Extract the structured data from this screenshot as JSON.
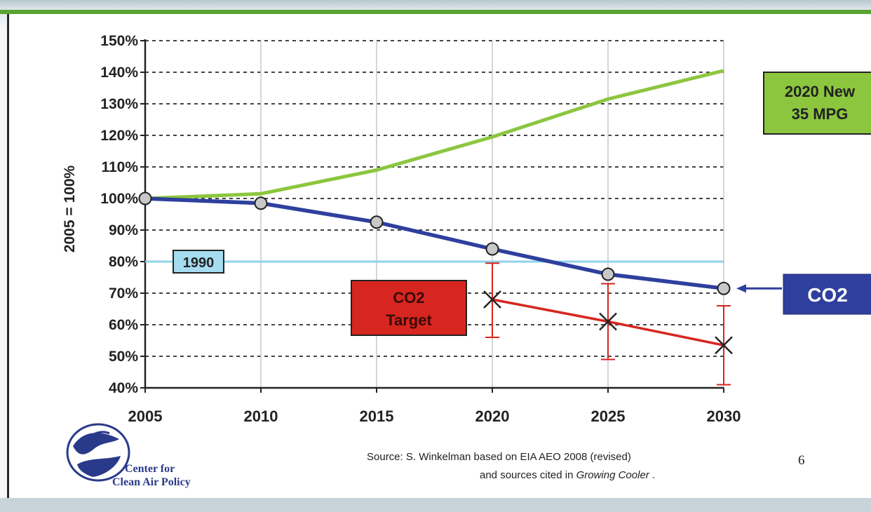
{
  "chart_data": {
    "type": "line",
    "ylabel": "2005 = 100%",
    "xlabel": "",
    "categories": [
      "2005",
      "2010",
      "2015",
      "2020",
      "2025",
      "2030"
    ],
    "x": [
      2005,
      2010,
      2015,
      2020,
      2025,
      2030
    ],
    "yticks": [
      "150%",
      "140%",
      "130%",
      "120%",
      "110%",
      "100%",
      "90%",
      "80%",
      "70%",
      "60%",
      "50%",
      "40%"
    ],
    "ylim": [
      40,
      150
    ],
    "grid": true,
    "series": [
      {
        "name": "2020 New 35 MPG",
        "color": "#8cc63f",
        "x": [
          2005,
          2010,
          2015,
          2020,
          2025,
          2030
        ],
        "values": [
          100,
          101.5,
          109,
          119.5,
          131.5,
          140.5
        ],
        "markers": false
      },
      {
        "name": "CO2",
        "color": "#2e3f9e",
        "x": [
          2005,
          2010,
          2015,
          2020,
          2025,
          2030
        ],
        "values": [
          100,
          98.5,
          92.5,
          84,
          76,
          71.5
        ],
        "markers": true
      },
      {
        "name": "CO2 Target",
        "color": "#d7261f",
        "x": [
          2020,
          2025,
          2030
        ],
        "values": [
          68,
          61,
          53.5
        ],
        "markers": true,
        "error_low": [
          56,
          49,
          41
        ],
        "error_high": [
          79.5,
          73,
          66
        ]
      }
    ],
    "reference_line": {
      "label": "1990",
      "value": 80,
      "color": "#8fd3ea"
    },
    "labels": {
      "green": [
        "2020 New",
        "35 MPG"
      ],
      "blue": "CO2",
      "red": [
        "CO2",
        "Target"
      ]
    }
  },
  "footer": {
    "source_line1": "Source: S. Winkelman based on EIA AEO 2008 (revised)",
    "source_line2_prefix": "and sources cited in ",
    "source_line2_italic": "Growing Cooler",
    "source_line2_suffix": " .",
    "page_number": "6",
    "logo_line1": "Center for",
    "logo_line2": "Clean Air Policy"
  }
}
